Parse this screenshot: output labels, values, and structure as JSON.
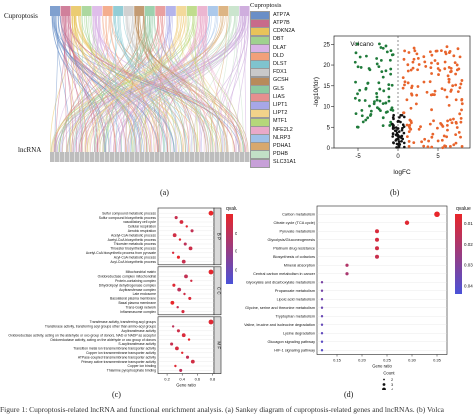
{
  "panel_a": {
    "tag": "(a)",
    "top_label": "Cuproptosis",
    "bottom_label": "lncRNA",
    "legend_title": "Cuproptosis",
    "genes": [
      "ATP7A",
      "ATP7B",
      "CDKN2A",
      "DBT",
      "DLAT",
      "DLD",
      "DLST",
      "FDX1",
      "GCSH",
      "GLS",
      "LIAS",
      "LIPT1",
      "LIPT2",
      "MTF1",
      "NFE2L2",
      "NLRP3",
      "PDHA1",
      "PDHB",
      "SLC31A1"
    ],
    "gene_colors": [
      "#6a8fc7",
      "#c86a8a",
      "#e8c35a",
      "#9fd18f",
      "#d9b3e6",
      "#f2a07a",
      "#7fc4cf",
      "#c9c9c9",
      "#b88a5a",
      "#8cc9a0",
      "#e58f8f",
      "#a7a7e8",
      "#f1d28a",
      "#b5d77a",
      "#e9a9c9",
      "#9ec0e8",
      "#d7a86e",
      "#c2e0c6",
      "#c7a0d8"
    ]
  },
  "panel_b": {
    "tag": "(b)",
    "title": "Volcano",
    "ylabel": "-log10(fdr)",
    "xlabel": "logFC",
    "x_ticks": [
      "-5",
      "0",
      "5"
    ],
    "y_ticks": [
      "0",
      "5",
      "10",
      "15",
      "20",
      "25"
    ]
  },
  "panel_c": {
    "tag": "(c)",
    "legend_title": "qvalue",
    "legend_ticks": [
      "0.02",
      "0.04",
      "0.06"
    ],
    "xlabel": "Gene ratio",
    "x_ticks": [
      "0.2",
      "0.4",
      "0.6",
      "0.8"
    ],
    "count_title": "Count",
    "count_items": [
      "3",
      "6",
      "9",
      "12"
    ],
    "groups": [
      {
        "letter": "B P",
        "terms": [
          "Sulfur compound metabolic process",
          "Sulfur compound biosynthetic process",
          "vasodilatory cell cycle",
          "Cellular respiration",
          "Aerobic respiration",
          "Acetyl-CoA metabolic process",
          "Acetyl-CoA biosynthetic process",
          "Thioester metabolic process",
          "Thioester biosynthetic process",
          "Acetyl-CoA biosynthetic process from pyruvate",
          "Acyl-CoA metabolic process",
          "Acyl-CoA biosynthetic process"
        ]
      },
      {
        "letter": "C C",
        "terms": [
          "Mitochondrial matrix",
          "Oxidoreductase complex mitochondrial",
          "Protein-containing complex",
          "Dihydrolipoyl dehydrogenase complex",
          "Acyltransferase complex",
          "Late endosome",
          "Basolateral plasma membrane",
          "Basal plasma membrane",
          "Trans-Golgi network",
          "Inflammasome complex"
        ]
      },
      {
        "letter": "M F",
        "terms": [
          "Transferase activity, transferring acyl groups",
          "Transferase activity, transferring acyl groups other than amino-acyl groups",
          "Acyltransferase activity",
          "Oxidoreductase activity, acting on the aldehyde or oxo group of donors, NAD or NADP as acceptor",
          "Oxidoreductase activity, acting on the aldehyde or oxo group of donors",
          "S-acyltransferase activity",
          "Transition metal ion transmembrane transporter activity",
          "Copper ion transmembrane transporter activity",
          "ATPase-coupled transmembrane transporter activity",
          "Primary active transmembrane transporter activity",
          "Copper ion binding",
          "Thiamine pyrophosphate binding"
        ]
      }
    ]
  },
  "panel_d": {
    "tag": "(d)",
    "legend_title": "qvalue",
    "legend_ticks": [
      "0.01",
      "0.02",
      "0.03",
      "0.04"
    ],
    "xlabel": "Gene ratio",
    "x_ticks": [
      "0.15",
      "0.20",
      "0.25",
      "0.30",
      "0.35"
    ],
    "count_title": "Count",
    "count_items": [
      "2",
      "3",
      "4"
    ],
    "terms": [
      "Carbon metabolism",
      "Citrate cycle (TCA cycle)",
      "Pyruvate metabolism",
      "Glycolysis/Gluconeogenesis",
      "Platinum drug resistance",
      "Biosynthesis of cofactors",
      "Mineral absorption",
      "Central carbon metabolism in cancer",
      "Glyoxylate and dicarboxylate metabolism",
      "Propanoate metabolism",
      "Lipoic acid metabolism",
      "Glycine, serine and threonine metabolism",
      "Tryptophan metabolism",
      "Valine, leucine and isoleucine degradation",
      "Lysine degradation",
      "Glucagon signaling pathway",
      "HIF-1 signaling pathway"
    ]
  },
  "caption_fragment": "Figure 1: Cuproptosis-related lncRNA and functional enrichment analysis. (a) Sankey diagram of cuproptosis-related genes and lncRNAs. (b) Volca"
}
